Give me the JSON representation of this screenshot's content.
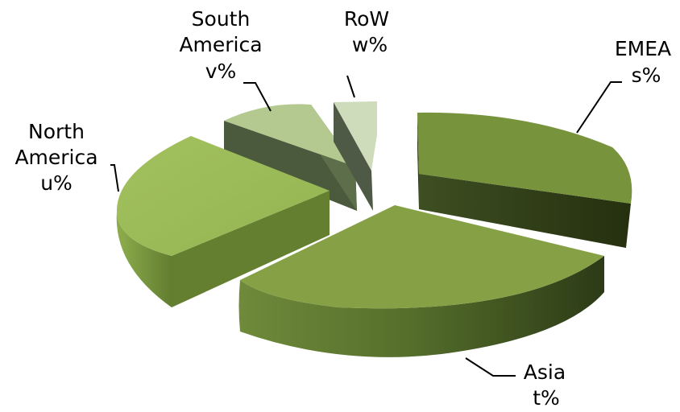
{
  "chart_data": {
    "type": "pie",
    "style": "3d-exploded",
    "slices": [
      {
        "label": "EMEA",
        "value_label": "s%",
        "color": "#77933c"
      },
      {
        "label": "Asia",
        "value_label": "t%",
        "color": "#86a045"
      },
      {
        "label": "North America",
        "value_label": "u%",
        "color": "#9bbb59"
      },
      {
        "label": "South America",
        "value_label": "v%",
        "color": "#b4c98f"
      },
      {
        "label": "RoW",
        "value_label": "w%",
        "color": "#cfdcbb"
      }
    ]
  }
}
